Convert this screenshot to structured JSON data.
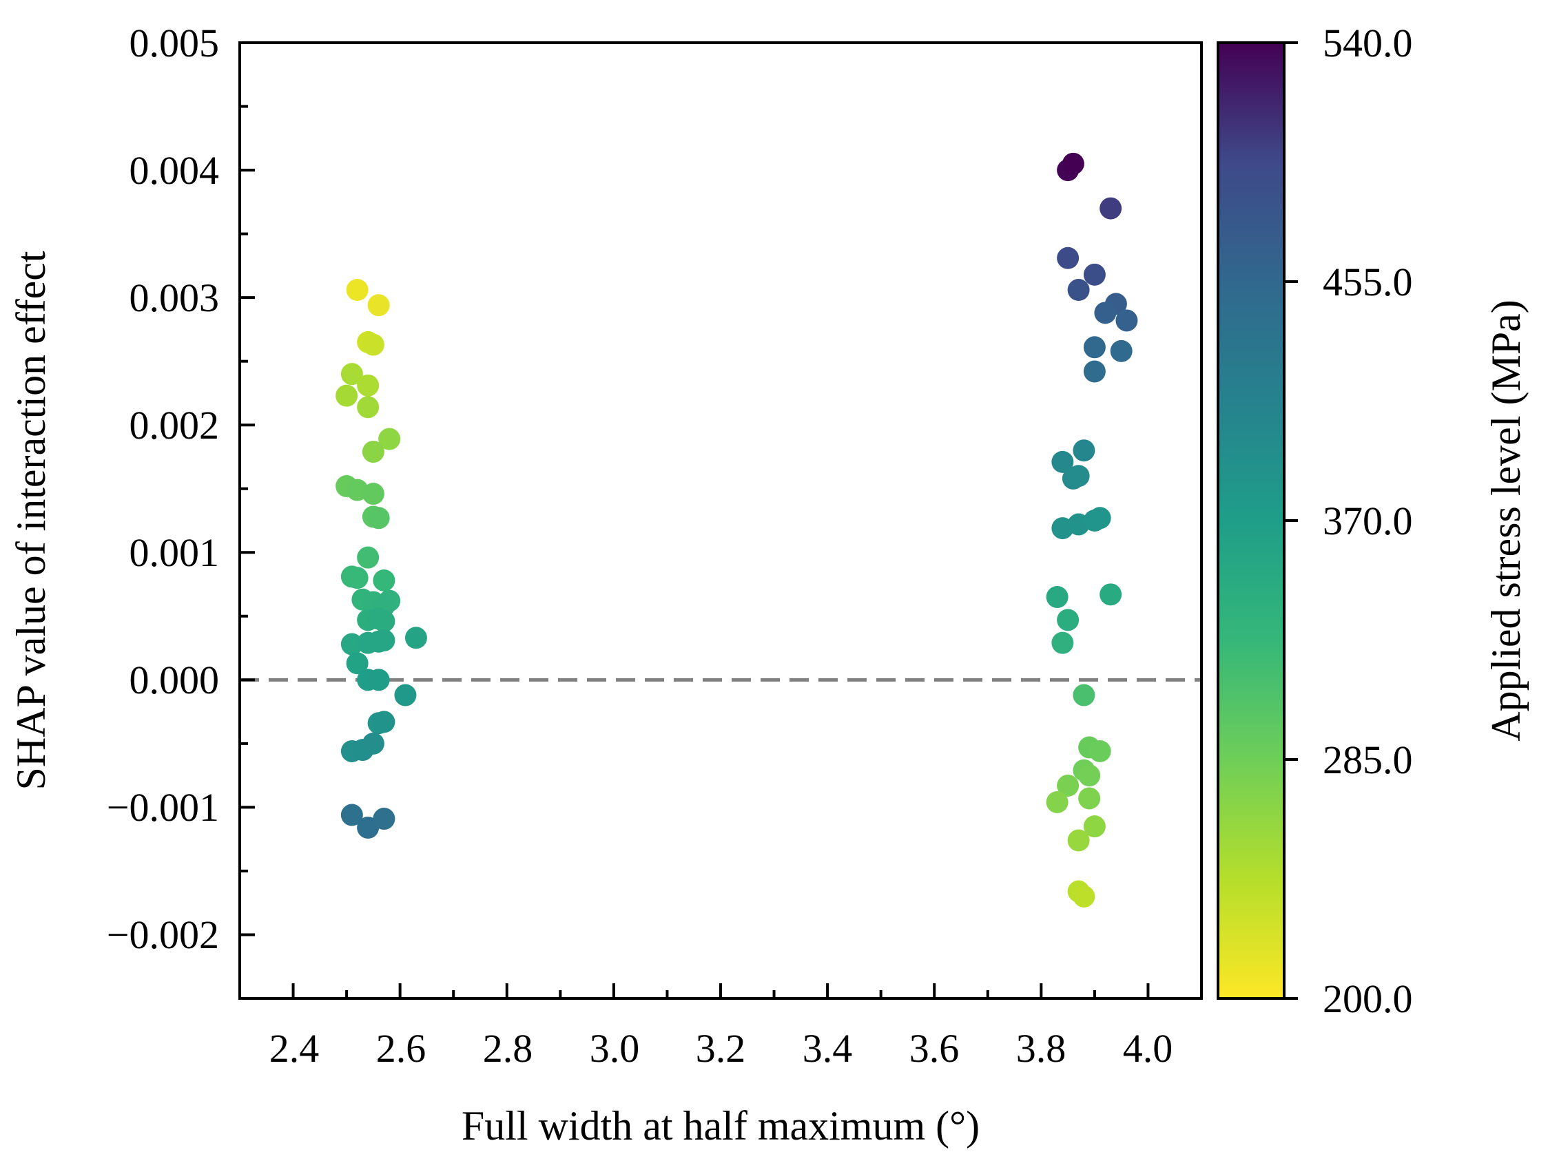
{
  "chart_data": {
    "type": "scatter",
    "title": "",
    "xlabel": "Full width at half maximum (°)",
    "ylabel": "SHAP value of interaction effect",
    "xlim": [
      2.3,
      4.1
    ],
    "ylim": [
      -0.0025,
      0.005
    ],
    "xticks": [
      "2.4",
      "2.6",
      "2.8",
      "3.0",
      "3.2",
      "3.4",
      "3.6",
      "3.8",
      "4.0"
    ],
    "yticks": [
      "−0.002",
      "−0.001",
      "0.000",
      "0.001",
      "0.002",
      "0.003",
      "0.004",
      "0.005"
    ],
    "reference_line": {
      "y": 0.0,
      "style": "dashed",
      "color": "#808080"
    },
    "colorbar": {
      "label": "Applied stress level (MPa)",
      "min": 200.0,
      "max": 540.0,
      "ticks": [
        "200.0",
        "285.0",
        "370.0",
        "455.0",
        "540.0"
      ],
      "colormap": "viridis"
    },
    "points": [
      {
        "x": 2.52,
        "y": 0.00306,
        "c": 210
      },
      {
        "x": 2.56,
        "y": 0.00294,
        "c": 212
      },
      {
        "x": 2.54,
        "y": 0.00265,
        "c": 228
      },
      {
        "x": 2.55,
        "y": 0.00263,
        "c": 230
      },
      {
        "x": 2.51,
        "y": 0.0024,
        "c": 250
      },
      {
        "x": 2.54,
        "y": 0.00231,
        "c": 248
      },
      {
        "x": 2.5,
        "y": 0.00223,
        "c": 252
      },
      {
        "x": 2.54,
        "y": 0.00214,
        "c": 255
      },
      {
        "x": 2.58,
        "y": 0.00189,
        "c": 265
      },
      {
        "x": 2.55,
        "y": 0.00179,
        "c": 268
      },
      {
        "x": 2.5,
        "y": 0.00152,
        "c": 290
      },
      {
        "x": 2.52,
        "y": 0.00149,
        "c": 292
      },
      {
        "x": 2.55,
        "y": 0.00146,
        "c": 294
      },
      {
        "x": 2.55,
        "y": 0.00128,
        "c": 300
      },
      {
        "x": 2.56,
        "y": 0.00127,
        "c": 302
      },
      {
        "x": 2.54,
        "y": 0.00096,
        "c": 318
      },
      {
        "x": 2.51,
        "y": 0.00081,
        "c": 325
      },
      {
        "x": 2.52,
        "y": 0.0008,
        "c": 326
      },
      {
        "x": 2.57,
        "y": 0.00078,
        "c": 328
      },
      {
        "x": 2.53,
        "y": 0.00063,
        "c": 335
      },
      {
        "x": 2.55,
        "y": 0.00061,
        "c": 336
      },
      {
        "x": 2.58,
        "y": 0.00062,
        "c": 337
      },
      {
        "x": 2.57,
        "y": 0.00058,
        "c": 340
      },
      {
        "x": 2.54,
        "y": 0.00047,
        "c": 345
      },
      {
        "x": 2.56,
        "y": 0.00048,
        "c": 346
      },
      {
        "x": 2.57,
        "y": 0.00046,
        "c": 347
      },
      {
        "x": 2.51,
        "y": 0.00028,
        "c": 355
      },
      {
        "x": 2.54,
        "y": 0.00029,
        "c": 356
      },
      {
        "x": 2.56,
        "y": 0.0003,
        "c": 357
      },
      {
        "x": 2.57,
        "y": 0.00031,
        "c": 356
      },
      {
        "x": 2.63,
        "y": 0.00033,
        "c": 360
      },
      {
        "x": 2.52,
        "y": 0.00013,
        "c": 362
      },
      {
        "x": 2.54,
        "y": 0.0,
        "c": 370
      },
      {
        "x": 2.56,
        "y": 0.0,
        "c": 371
      },
      {
        "x": 2.61,
        "y": -0.00012,
        "c": 378
      },
      {
        "x": 2.56,
        "y": -0.00034,
        "c": 385
      },
      {
        "x": 2.57,
        "y": -0.00033,
        "c": 386
      },
      {
        "x": 2.51,
        "y": -0.00056,
        "c": 392
      },
      {
        "x": 2.53,
        "y": -0.00055,
        "c": 393
      },
      {
        "x": 2.55,
        "y": -0.0005,
        "c": 394
      },
      {
        "x": 2.51,
        "y": -0.00106,
        "c": 440
      },
      {
        "x": 2.54,
        "y": -0.00116,
        "c": 445
      },
      {
        "x": 2.57,
        "y": -0.00109,
        "c": 442
      },
      {
        "x": 3.85,
        "y": 0.004,
        "c": 538
      },
      {
        "x": 3.86,
        "y": 0.00405,
        "c": 540
      },
      {
        "x": 3.93,
        "y": 0.0037,
        "c": 505
      },
      {
        "x": 3.85,
        "y": 0.00331,
        "c": 495
      },
      {
        "x": 3.9,
        "y": 0.00318,
        "c": 490
      },
      {
        "x": 3.87,
        "y": 0.00306,
        "c": 485
      },
      {
        "x": 3.94,
        "y": 0.00295,
        "c": 470
      },
      {
        "x": 3.92,
        "y": 0.00288,
        "c": 468
      },
      {
        "x": 3.96,
        "y": 0.00282,
        "c": 465
      },
      {
        "x": 3.9,
        "y": 0.00261,
        "c": 455
      },
      {
        "x": 3.95,
        "y": 0.00258,
        "c": 452
      },
      {
        "x": 3.9,
        "y": 0.00242,
        "c": 448
      },
      {
        "x": 3.88,
        "y": 0.0018,
        "c": 405
      },
      {
        "x": 3.84,
        "y": 0.00171,
        "c": 403
      },
      {
        "x": 3.86,
        "y": 0.00158,
        "c": 400
      },
      {
        "x": 3.87,
        "y": 0.0016,
        "c": 398
      },
      {
        "x": 3.84,
        "y": 0.00119,
        "c": 388
      },
      {
        "x": 3.87,
        "y": 0.00122,
        "c": 386
      },
      {
        "x": 3.9,
        "y": 0.00125,
        "c": 385
      },
      {
        "x": 3.91,
        "y": 0.00127,
        "c": 384
      },
      {
        "x": 3.83,
        "y": 0.00065,
        "c": 352
      },
      {
        "x": 3.93,
        "y": 0.00067,
        "c": 350
      },
      {
        "x": 3.85,
        "y": 0.00047,
        "c": 345
      },
      {
        "x": 3.84,
        "y": 0.00029,
        "c": 340
      },
      {
        "x": 3.88,
        "y": -0.00012,
        "c": 312
      },
      {
        "x": 3.89,
        "y": -0.00053,
        "c": 290
      },
      {
        "x": 3.91,
        "y": -0.00056,
        "c": 288
      },
      {
        "x": 3.88,
        "y": -0.00071,
        "c": 285
      },
      {
        "x": 3.89,
        "y": -0.00075,
        "c": 282
      },
      {
        "x": 3.85,
        "y": -0.00083,
        "c": 278
      },
      {
        "x": 3.83,
        "y": -0.00096,
        "c": 272
      },
      {
        "x": 3.89,
        "y": -0.00093,
        "c": 275
      },
      {
        "x": 3.9,
        "y": -0.00115,
        "c": 265
      },
      {
        "x": 3.87,
        "y": -0.00126,
        "c": 260
      },
      {
        "x": 3.87,
        "y": -0.00166,
        "c": 240
      },
      {
        "x": 3.88,
        "y": -0.0017,
        "c": 238
      }
    ]
  }
}
